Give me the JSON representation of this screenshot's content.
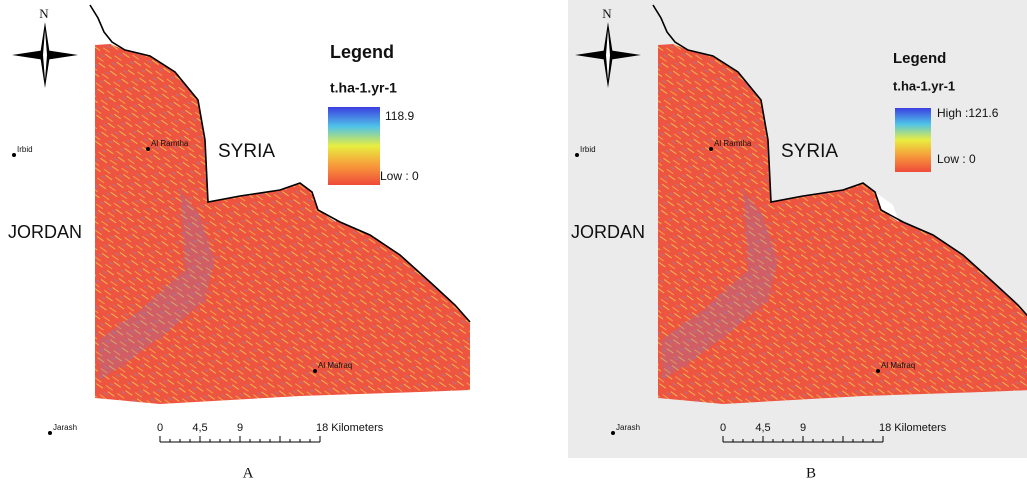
{
  "panels": [
    {
      "north": "N",
      "legend_title": "Legend",
      "unit": "t.ha-1.yr-1",
      "high": "118.9",
      "low": "Low : 0",
      "country_east": "SYRIA",
      "country_west": "JORDAN",
      "towns": [
        "Irbid",
        "Al Ramtha",
        "Al Mafraq",
        "Jarash"
      ],
      "scale": [
        "0",
        "4,5",
        "9",
        "18 Kilometers"
      ],
      "caption": "A"
    },
    {
      "north": "N",
      "legend_title": "Legend",
      "unit": "t.ha-1.yr-1",
      "high": "High :121.6",
      "low": "Low : 0",
      "country_east": "SYRIA",
      "country_west": "JORDAN",
      "towns": [
        "Irbid",
        "Al Ramtha",
        "Al Mafraq",
        "Jarash"
      ],
      "scale": [
        "0",
        "4,5",
        "9",
        "18 Kilometers"
      ],
      "caption": "B"
    }
  ]
}
